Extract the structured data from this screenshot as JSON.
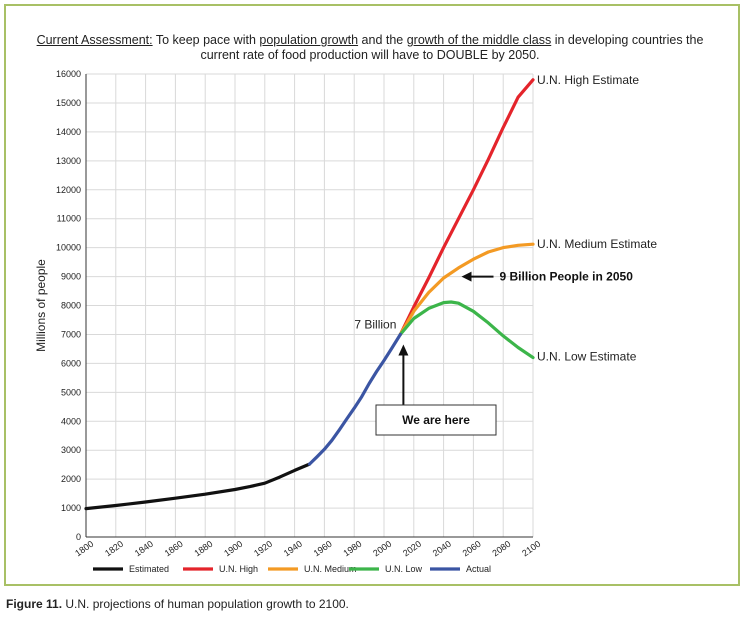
{
  "headline": {
    "lead": "Current Assessment:",
    "t1": " To keep pace with ",
    "u1": "population growth",
    "t2": " and the ",
    "u2": "growth of the middle class",
    "t3": " in developing countries the",
    "line2": "current rate of food production will have to DOUBLE by 2050."
  },
  "caption": {
    "label": "Figure 11.",
    "text": " U.N. projections of human population growth to 2100."
  },
  "colors": {
    "estimated": "#111111",
    "high": "#e4242b",
    "medium": "#f39a24",
    "low": "#3cb54a",
    "actual": "#3b55a3",
    "frame": "#a8c065"
  },
  "chart_data": {
    "type": "line",
    "ylabel": "Millions of people",
    "xlabel": "",
    "xlim": [
      1800,
      2100
    ],
    "ylim": [
      0,
      16000
    ],
    "x_ticks": [
      1800,
      1820,
      1840,
      1860,
      1880,
      1900,
      1920,
      1940,
      1960,
      1980,
      2000,
      2020,
      2040,
      2060,
      2080,
      2100
    ],
    "y_ticks": [
      0,
      1000,
      2000,
      3000,
      4000,
      5000,
      6000,
      7000,
      8000,
      9000,
      10000,
      11000,
      12000,
      13000,
      14000,
      15000,
      16000
    ],
    "grid": true,
    "legend_position": "bottom",
    "series": [
      {
        "name": "Estimated",
        "key": "estimated",
        "x": [
          1800,
          1820,
          1840,
          1860,
          1880,
          1900,
          1910,
          1920,
          1930,
          1940,
          1950
        ],
        "y": [
          980,
          1090,
          1210,
          1340,
          1480,
          1640,
          1740,
          1860,
          2070,
          2300,
          2520
        ]
      },
      {
        "name": "U.N. High",
        "key": "high",
        "x": [
          2011,
          2020,
          2030,
          2040,
          2050,
          2060,
          2070,
          2080,
          2090,
          2100
        ],
        "y": [
          7000,
          7950,
          8950,
          10000,
          11000,
          12000,
          13050,
          14150,
          15200,
          15800
        ]
      },
      {
        "name": "U.N. Medium",
        "key": "medium",
        "x": [
          2011,
          2020,
          2030,
          2040,
          2050,
          2060,
          2070,
          2080,
          2090,
          2100
        ],
        "y": [
          7000,
          7800,
          8450,
          8950,
          9300,
          9600,
          9850,
          10000,
          10080,
          10120
        ]
      },
      {
        "name": "U.N. Low",
        "key": "low",
        "x": [
          2011,
          2020,
          2030,
          2040,
          2045,
          2050,
          2060,
          2070,
          2080,
          2090,
          2100
        ],
        "y": [
          7000,
          7550,
          7900,
          8100,
          8120,
          8080,
          7800,
          7400,
          6950,
          6550,
          6200
        ]
      },
      {
        "name": "Actual",
        "key": "actual",
        "x": [
          1950,
          1955,
          1960,
          1965,
          1970,
          1975,
          1980,
          1985,
          1990,
          1995,
          2000,
          2005,
          2011
        ],
        "y": [
          2520,
          2770,
          3030,
          3340,
          3700,
          4080,
          4450,
          4850,
          5300,
          5720,
          6100,
          6500,
          7000
        ]
      }
    ],
    "annotations": {
      "high_label": "U.N. High Estimate",
      "medium_label": "U.N. Medium Estimate",
      "low_label": "U.N. Low Estimate",
      "seven_billion": "7 Billion",
      "nine_billion": "9 Billion People in 2050",
      "we_are_here": "We are here"
    }
  }
}
